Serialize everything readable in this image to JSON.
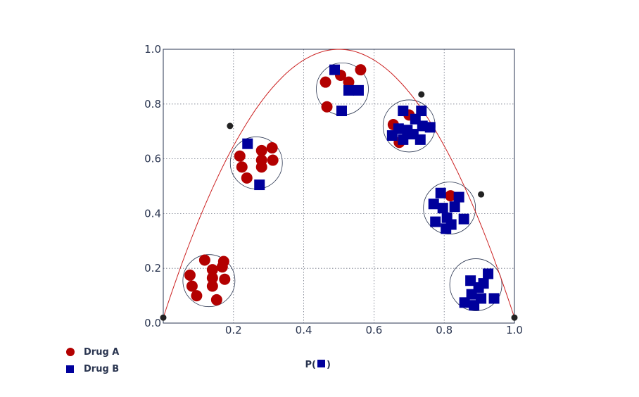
{
  "chart_data": {
    "type": "scatter",
    "xlabel_prefix": "P(",
    "xlabel_suffix": ")",
    "xlim": [
      0,
      1
    ],
    "ylim": [
      0,
      1
    ],
    "xticks": [
      "0.2",
      "0.4",
      "0.6",
      "0.8",
      "1.0"
    ],
    "yticks": [
      "0.0",
      "0.2",
      "0.4",
      "0.6",
      "0.8",
      "1.0"
    ],
    "grid": true,
    "legend_position": "bottom-left",
    "colors": {
      "drug_a": "#b30000",
      "drug_b": "#00009c",
      "curve": "#cc2222",
      "axis": "#2a3550",
      "knot": "#222222"
    },
    "series": [
      {
        "name": "Drug A",
        "marker": "circle",
        "points": [
          [
            0.076,
            0.175
          ],
          [
            0.118,
            0.23
          ],
          [
            0.172,
            0.225
          ],
          [
            0.14,
            0.195
          ],
          [
            0.168,
            0.205
          ],
          [
            0.082,
            0.135
          ],
          [
            0.14,
            0.135
          ],
          [
            0.175,
            0.16
          ],
          [
            0.14,
            0.165
          ],
          [
            0.095,
            0.1
          ],
          [
            0.152,
            0.085
          ],
          [
            0.218,
            0.61
          ],
          [
            0.28,
            0.63
          ],
          [
            0.31,
            0.64
          ],
          [
            0.224,
            0.57
          ],
          [
            0.28,
            0.57
          ],
          [
            0.312,
            0.595
          ],
          [
            0.238,
            0.53
          ],
          [
            0.28,
            0.595
          ],
          [
            0.462,
            0.88
          ],
          [
            0.505,
            0.905
          ],
          [
            0.562,
            0.925
          ],
          [
            0.528,
            0.88
          ],
          [
            0.466,
            0.79
          ],
          [
            0.655,
            0.725
          ],
          [
            0.7,
            0.76
          ],
          [
            0.672,
            0.66
          ],
          [
            0.818,
            0.465
          ]
        ]
      },
      {
        "name": "Drug B",
        "marker": "square",
        "points": [
          [
            0.24,
            0.655
          ],
          [
            0.274,
            0.505
          ],
          [
            0.488,
            0.925
          ],
          [
            0.528,
            0.85
          ],
          [
            0.556,
            0.85
          ],
          [
            0.508,
            0.775
          ],
          [
            0.683,
            0.775
          ],
          [
            0.735,
            0.775
          ],
          [
            0.652,
            0.685
          ],
          [
            0.67,
            0.71
          ],
          [
            0.695,
            0.705
          ],
          [
            0.712,
            0.69
          ],
          [
            0.738,
            0.72
          ],
          [
            0.76,
            0.715
          ],
          [
            0.732,
            0.67
          ],
          [
            0.683,
            0.67
          ],
          [
            0.718,
            0.745
          ],
          [
            0.79,
            0.475
          ],
          [
            0.842,
            0.46
          ],
          [
            0.77,
            0.435
          ],
          [
            0.796,
            0.42
          ],
          [
            0.83,
            0.425
          ],
          [
            0.808,
            0.385
          ],
          [
            0.856,
            0.38
          ],
          [
            0.775,
            0.37
          ],
          [
            0.82,
            0.36
          ],
          [
            0.805,
            0.345
          ],
          [
            0.875,
            0.155
          ],
          [
            0.912,
            0.145
          ],
          [
            0.925,
            0.18
          ],
          [
            0.898,
            0.13
          ],
          [
            0.878,
            0.105
          ],
          [
            0.905,
            0.09
          ],
          [
            0.942,
            0.09
          ],
          [
            0.858,
            0.075
          ],
          [
            0.885,
            0.065
          ]
        ]
      }
    ],
    "clusters": [
      {
        "x": 0.13,
        "y": 0.155
      },
      {
        "x": 0.265,
        "y": 0.585
      },
      {
        "x": 0.51,
        "y": 0.855
      },
      {
        "x": 0.7,
        "y": 0.72
      },
      {
        "x": 0.815,
        "y": 0.42
      },
      {
        "x": 0.89,
        "y": 0.14
      }
    ],
    "curve_knots": [
      [
        0.0,
        0.02
      ],
      [
        0.19,
        0.72
      ],
      [
        0.735,
        0.835
      ],
      [
        0.905,
        0.47
      ],
      [
        1.0,
        0.02
      ]
    ]
  },
  "legend": {
    "items": [
      {
        "label": "Drug A",
        "color": "#b30000"
      },
      {
        "label": "Drug B",
        "color": "#00009c"
      }
    ]
  }
}
